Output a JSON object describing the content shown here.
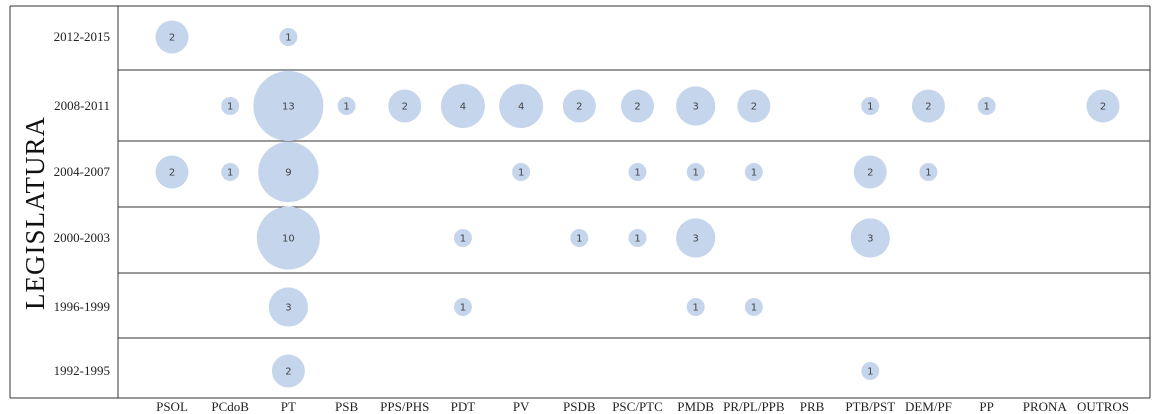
{
  "chart_data": {
    "type": "scatter",
    "ylabel": "LEGISLATURA",
    "xlabel": "",
    "title": "",
    "bubble_color": "#c5d5ec",
    "categories": [
      "PSOL",
      "PCdoB",
      "PT",
      "PSB",
      "PPS/PHS",
      "PDT",
      "PV",
      "PSDB",
      "PSC/PTC",
      "PMDB",
      "PR/PL/PPB",
      "PRB",
      "PTB/PST",
      "DEM/PF",
      "PP",
      "PRONA",
      "OUTROS"
    ],
    "rows": [
      "2012-2015",
      "2008-2011",
      "2004-2007",
      "2000-2003",
      "1996-1999",
      "1992-1995"
    ],
    "points": [
      {
        "row": "2012-2015",
        "party": "PSOL",
        "value": 2
      },
      {
        "row": "2012-2015",
        "party": "PT",
        "value": 1
      },
      {
        "row": "2008-2011",
        "party": "PCdoB",
        "value": 1
      },
      {
        "row": "2008-2011",
        "party": "PT",
        "value": 13
      },
      {
        "row": "2008-2011",
        "party": "PSB",
        "value": 1
      },
      {
        "row": "2008-2011",
        "party": "PPS/PHS",
        "value": 2
      },
      {
        "row": "2008-2011",
        "party": "PDT",
        "value": 4
      },
      {
        "row": "2008-2011",
        "party": "PV",
        "value": 4
      },
      {
        "row": "2008-2011",
        "party": "PSDB",
        "value": 2
      },
      {
        "row": "2008-2011",
        "party": "PSC/PTC",
        "value": 2
      },
      {
        "row": "2008-2011",
        "party": "PMDB",
        "value": 3
      },
      {
        "row": "2008-2011",
        "party": "PR/PL/PPB",
        "value": 2
      },
      {
        "row": "2008-2011",
        "party": "PTB/PST",
        "value": 1
      },
      {
        "row": "2008-2011",
        "party": "DEM/PF",
        "value": 2
      },
      {
        "row": "2008-2011",
        "party": "PP",
        "value": 1
      },
      {
        "row": "2008-2011",
        "party": "OUTROS",
        "value": 2
      },
      {
        "row": "2004-2007",
        "party": "PSOL",
        "value": 2
      },
      {
        "row": "2004-2007",
        "party": "PCdoB",
        "value": 1
      },
      {
        "row": "2004-2007",
        "party": "PT",
        "value": 9
      },
      {
        "row": "2004-2007",
        "party": "PV",
        "value": 1
      },
      {
        "row": "2004-2007",
        "party": "PSC/PTC",
        "value": 1
      },
      {
        "row": "2004-2007",
        "party": "PMDB",
        "value": 1
      },
      {
        "row": "2004-2007",
        "party": "PR/PL/PPB",
        "value": 1
      },
      {
        "row": "2004-2007",
        "party": "PTB/PST",
        "value": 2
      },
      {
        "row": "2004-2007",
        "party": "DEM/PF",
        "value": 1
      },
      {
        "row": "2000-2003",
        "party": "PT",
        "value": 10
      },
      {
        "row": "2000-2003",
        "party": "PDT",
        "value": 1
      },
      {
        "row": "2000-2003",
        "party": "PSDB",
        "value": 1
      },
      {
        "row": "2000-2003",
        "party": "PSC/PTC",
        "value": 1
      },
      {
        "row": "2000-2003",
        "party": "PMDB",
        "value": 3
      },
      {
        "row": "2000-2003",
        "party": "PTB/PST",
        "value": 3
      },
      {
        "row": "1996-1999",
        "party": "PT",
        "value": 3
      },
      {
        "row": "1996-1999",
        "party": "PDT",
        "value": 1
      },
      {
        "row": "1996-1999",
        "party": "PMDB",
        "value": 1
      },
      {
        "row": "1996-1999",
        "party": "PR/PL/PPB",
        "value": 1
      },
      {
        "row": "1992-1995",
        "party": "PT",
        "value": 2
      },
      {
        "row": "1992-1995",
        "party": "PTB/PST",
        "value": 1
      }
    ]
  }
}
